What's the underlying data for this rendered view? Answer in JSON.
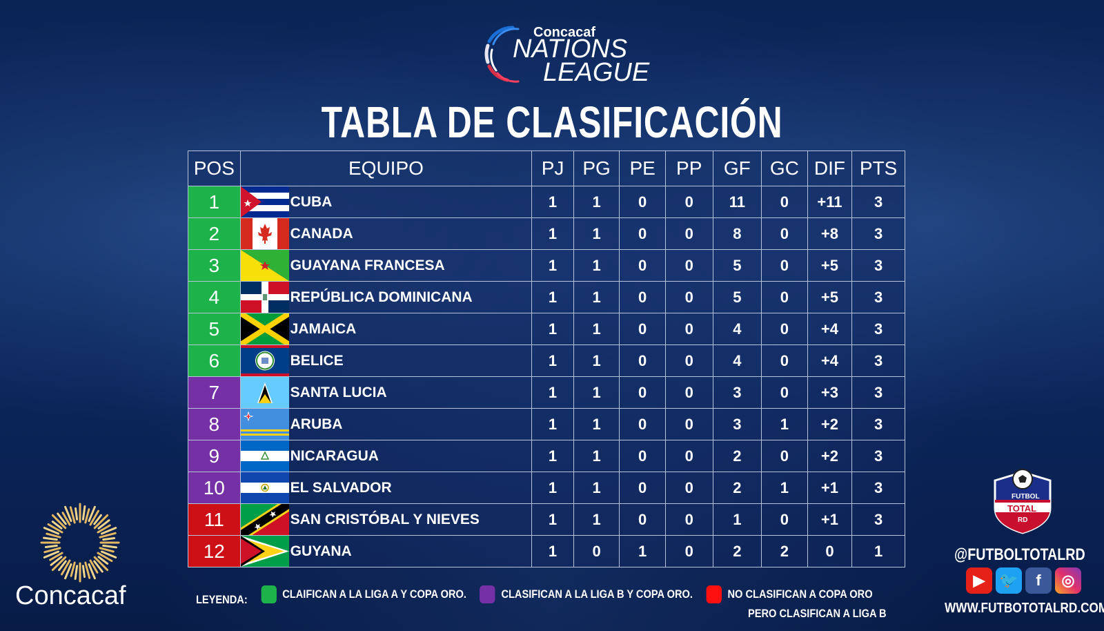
{
  "logo": {
    "brand": "Concacaf",
    "title_line1": "NATIONS",
    "title_line2": "LEAGUE"
  },
  "title": "TABLA DE CLASIFICACIÓN",
  "table": {
    "headers": [
      "POS",
      "EQUIPO",
      "PJ",
      "PG",
      "PE",
      "PP",
      "GF",
      "GC",
      "DIF",
      "PTS"
    ],
    "rows": [
      {
        "pos": "1",
        "team": "CUBA",
        "flag": "cuba",
        "zone": "green",
        "pj": "1",
        "pg": "1",
        "pe": "0",
        "pp": "0",
        "gf": "11",
        "gc": "0",
        "dif": "+11",
        "pts": "3"
      },
      {
        "pos": "2",
        "team": "CANADA",
        "flag": "canada",
        "zone": "green",
        "pj": "1",
        "pg": "1",
        "pe": "0",
        "pp": "0",
        "gf": "8",
        "gc": "0",
        "dif": "+8",
        "pts": "3"
      },
      {
        "pos": "3",
        "team": "GUAYANA FRANCESA",
        "flag": "french-guiana",
        "zone": "green",
        "pj": "1",
        "pg": "1",
        "pe": "0",
        "pp": "0",
        "gf": "5",
        "gc": "0",
        "dif": "+5",
        "pts": "3"
      },
      {
        "pos": "4",
        "team": "REPÚBLICA DOMINICANA",
        "flag": "dominican-republic",
        "zone": "green",
        "pj": "1",
        "pg": "1",
        "pe": "0",
        "pp": "0",
        "gf": "5",
        "gc": "0",
        "dif": "+5",
        "pts": "3"
      },
      {
        "pos": "5",
        "team": "JAMAICA",
        "flag": "jamaica",
        "zone": "green",
        "pj": "1",
        "pg": "1",
        "pe": "0",
        "pp": "0",
        "gf": "4",
        "gc": "0",
        "dif": "+4",
        "pts": "3"
      },
      {
        "pos": "6",
        "team": "BELICE",
        "flag": "belize",
        "zone": "green",
        "pj": "1",
        "pg": "1",
        "pe": "0",
        "pp": "0",
        "gf": "4",
        "gc": "0",
        "dif": "+4",
        "pts": "3"
      },
      {
        "pos": "7",
        "team": "SANTA LUCIA",
        "flag": "saint-lucia",
        "zone": "purple",
        "pj": "1",
        "pg": "1",
        "pe": "0",
        "pp": "0",
        "gf": "3",
        "gc": "0",
        "dif": "+3",
        "pts": "3"
      },
      {
        "pos": "8",
        "team": "ARUBA",
        "flag": "aruba",
        "zone": "purple",
        "pj": "1",
        "pg": "1",
        "pe": "0",
        "pp": "0",
        "gf": "3",
        "gc": "1",
        "dif": "+2",
        "pts": "3"
      },
      {
        "pos": "9",
        "team": "NICARAGUA",
        "flag": "nicaragua",
        "zone": "purple",
        "pj": "1",
        "pg": "1",
        "pe": "0",
        "pp": "0",
        "gf": "2",
        "gc": "0",
        "dif": "+2",
        "pts": "3"
      },
      {
        "pos": "10",
        "team": "EL SALVADOR",
        "flag": "el-salvador",
        "zone": "purple",
        "pj": "1",
        "pg": "1",
        "pe": "0",
        "pp": "0",
        "gf": "2",
        "gc": "1",
        "dif": "+1",
        "pts": "3"
      },
      {
        "pos": "11",
        "team": "SAN CRISTÓBAL Y NIEVES",
        "flag": "saint-kitts-nevis",
        "zone": "red",
        "pj": "1",
        "pg": "1",
        "pe": "0",
        "pp": "0",
        "gf": "1",
        "gc": "0",
        "dif": "+1",
        "pts": "3"
      },
      {
        "pos": "12",
        "team": "GUYANA",
        "flag": "guyana",
        "zone": "red",
        "pj": "1",
        "pg": "0",
        "pe": "1",
        "pp": "0",
        "gf": "2",
        "gc": "2",
        "dif": "0",
        "pts": "1"
      }
    ]
  },
  "legend": {
    "label": "LEYENDA:",
    "green": "CLAIFICAN  A LA LIGA  A Y COPA ORO.",
    "purple": "CLASIFICAN  A LA LIGA  B Y COPA ORO.",
    "red_line1": "NO CLASIFICAN  A COPA ORO",
    "red_line2": "PERO  CLASIFICAN  A LIGA  B"
  },
  "colors": {
    "green": "#1db34a",
    "purple": "#7530a6",
    "red": "#cc1016",
    "background": "#0d2a62"
  },
  "footer_brand": "Concacaf",
  "badge": {
    "line1": "FUTBOL",
    "line2": "TOTAL",
    "line3": "RD"
  },
  "social": {
    "handle": "@FUTBOLTOTALRD",
    "icons": [
      "youtube-icon",
      "twitter-icon",
      "facebook-icon",
      "instagram-icon"
    ],
    "website": "WWW.FUTBOTOTALRD.COM"
  }
}
